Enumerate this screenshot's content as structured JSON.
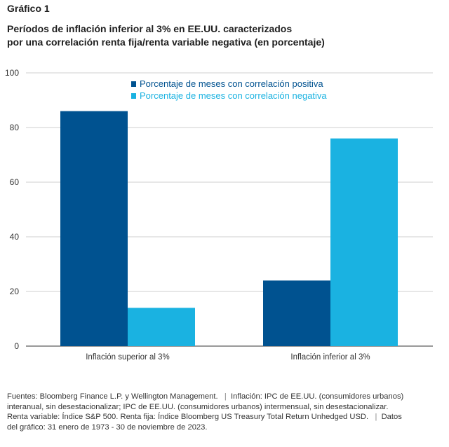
{
  "figure": {
    "label": "Gráfico 1",
    "title_line1": "Períodos de inflación inferior al 3% en EE.UU. caracterizados",
    "title_line2": "por una correlación renta fija/renta variable negativa (en porcentaje)"
  },
  "chart_data": {
    "type": "bar",
    "categories": [
      "Inflación superior al 3%",
      "Inflación inferior al 3%"
    ],
    "series": [
      {
        "name": "Porcentaje de meses con correlación positiva",
        "values": [
          86,
          24
        ],
        "color": "#005290"
      },
      {
        "name": "Porcentaje de meses con correlación negativa",
        "values": [
          14,
          76
        ],
        "color": "#1ab2e1"
      }
    ],
    "ylim": [
      0,
      100
    ],
    "yticks": [
      0,
      20,
      40,
      60,
      80,
      100
    ],
    "grid": true,
    "legend": "top-center",
    "xlabel": "",
    "ylabel": ""
  },
  "footnote": {
    "line1_a": "Fuentes: Bloomberg Finance L.P. y Wellington Management.",
    "line1_sep": "|",
    "line1_b": "Inflación: IPC de EE.UU. (consumidores urbanos)",
    "line2": "interanual, sin desestacionalizar; IPC de EE.UU. (consumidores urbanos) intermensual, sin desestacionalizar.",
    "line3_a": "Renta variable: Índice S&P 500. Renta fija: Índice Bloomberg US Treasury Total Return Unhedged USD.",
    "line3_sep": "|",
    "line3_b": "Datos",
    "line4": "del gráfico: 31 enero de 1973 - 30 de noviembre de 2023."
  }
}
